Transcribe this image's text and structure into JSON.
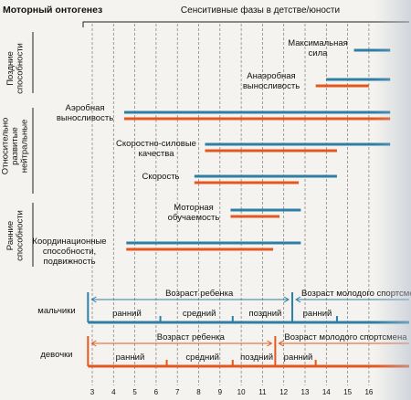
{
  "chart_data": {
    "type": "gantt",
    "title": "Моторный онтогенез",
    "subtitle": "Сенситивные фазы в детстве/юности",
    "x_ticks": [
      3,
      4,
      5,
      6,
      7,
      8,
      9,
      10,
      11,
      12,
      13,
      14,
      15,
      16
    ],
    "colors": {
      "boys": "#2e7fa6",
      "girls": "#e4571f",
      "axis": "#1f6f99"
    },
    "groups": [
      {
        "label": "Поздние способности"
      },
      {
        "label": "Относительно развитые нейтральные"
      },
      {
        "label": "Ранние способности"
      }
    ],
    "abilities": [
      {
        "label": "Максимальная сила",
        "boys": [
          15.3,
          17
        ],
        "girls": null
      },
      {
        "label": "Анаэробная выносливость",
        "boys": [
          14,
          17
        ],
        "girls": [
          13.5,
          16
        ]
      },
      {
        "label": "Аэробная выносливость",
        "boys": [
          4.5,
          17
        ],
        "girls": [
          4.5,
          17
        ]
      },
      {
        "label": "Скоростно-силовые качества",
        "boys": [
          8.3,
          17
        ],
        "girls": [
          8.3,
          14.5
        ]
      },
      {
        "label": "Скорость",
        "boys": [
          7.8,
          14.5
        ],
        "girls": [
          7.8,
          12.7
        ]
      },
      {
        "label": "Моторная обучаемость",
        "boys": [
          9.5,
          12.8
        ],
        "girls": [
          9.5,
          11.8
        ]
      },
      {
        "label": "Координационные способности, подвижность",
        "boys": [
          4.6,
          12.8
        ],
        "girls": [
          4.6,
          11.5
        ]
      }
    ],
    "age_periods": {
      "boys": {
        "label": "мальчики",
        "range": [
          2.8,
          17
        ],
        "child_label": "Возраст ребенка",
        "child_range": [
          2.8,
          12.4
        ],
        "youth_label": "Возраст молодого спортсмена",
        "youth_range": [
          12.4,
          17
        ],
        "phases": [
          {
            "label": "ранний",
            "range": [
              2.8,
              6.2
            ]
          },
          {
            "label": "средний",
            "range": [
              6.2,
              9.6
            ]
          },
          {
            "label": "поздний",
            "range": [
              9.6,
              12.4
            ]
          },
          {
            "label": "ранний",
            "range": [
              12.4,
              14.5
            ]
          },
          {
            "label": "",
            "range": [
              14.5,
              17
            ]
          }
        ]
      },
      "girls": {
        "label": "девочки",
        "range": [
          2.8,
          17
        ],
        "child_label": "Возраст ребенка",
        "child_range": [
          2.8,
          11.6
        ],
        "youth_label": "Возраст молодого спортсмена",
        "youth_range": [
          11.6,
          17
        ],
        "phases": [
          {
            "label": "ранний",
            "range": [
              2.8,
              6.5
            ]
          },
          {
            "label": "средний",
            "range": [
              6.5,
              9.6
            ]
          },
          {
            "label": "поздний",
            "range": [
              9.6,
              11.6
            ]
          },
          {
            "label": "ранний",
            "range": [
              11.6,
              13.5
            ]
          },
          {
            "label": "",
            "range": [
              13.5,
              17
            ]
          }
        ]
      }
    }
  }
}
